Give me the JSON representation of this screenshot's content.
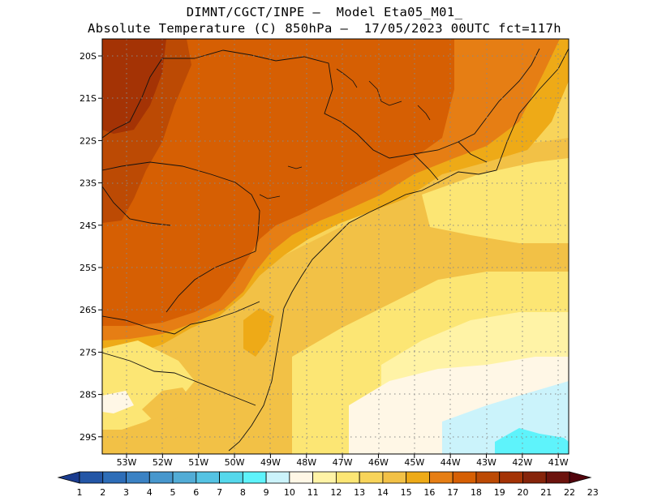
{
  "header": {
    "line1": "DIMNT/CGCT/INPE –  Model Eta05_M01_",
    "line2": "Absolute Temperature (C) 850hPa –  17/05/2023 00UTC fct=117h"
  },
  "map": {
    "lat_labels": [
      "20S",
      "21S",
      "22S",
      "23S",
      "24S",
      "25S",
      "26S",
      "27S",
      "28S",
      "29S"
    ],
    "lon_labels": [
      "53W",
      "52W",
      "51W",
      "50W",
      "49W",
      "48W",
      "47W",
      "46W",
      "45W",
      "44W",
      "43W",
      "42W",
      "41W"
    ]
  },
  "colorbar": {
    "labels": [
      "1",
      "2",
      "3",
      "4",
      "5",
      "6",
      "7",
      "8",
      "9",
      "10",
      "11",
      "12",
      "13",
      "14",
      "15",
      "16",
      "17",
      "18",
      "19",
      "20",
      "21",
      "22",
      "23"
    ],
    "colors": [
      "#1b3c8f",
      "#2356a6",
      "#2d6db8",
      "#3b82c4",
      "#4797cd",
      "#52acd6",
      "#55c3e3",
      "#55d8ec",
      "#5ef3fb",
      "#cbf3fb",
      "#fff7e6",
      "#fff3a6",
      "#fce674",
      "#f8d45a",
      "#f2c146",
      "#eeaa17",
      "#e67e14",
      "#d65f03",
      "#bc4a04",
      "#a43305",
      "#86240a",
      "#6c130d",
      "#52040c"
    ]
  }
}
